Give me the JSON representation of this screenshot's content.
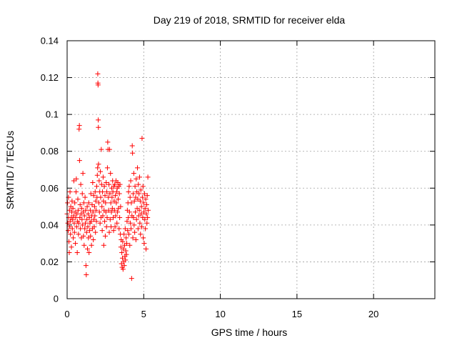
{
  "chart_data": {
    "type": "scatter",
    "title": "Day 219 of 2018, SRMTID for receiver elda",
    "xlabel": "GPS time / hours",
    "ylabel": "SRMTID / TECUs",
    "xlim": [
      0,
      24
    ],
    "ylim": [
      0,
      0.14
    ],
    "xticks": [
      0,
      5,
      10,
      15,
      20
    ],
    "xtick_labels": [
      "0",
      "5",
      "10",
      "15",
      "20"
    ],
    "yticks": [
      0,
      0.02,
      0.04,
      0.06,
      0.08,
      0.1,
      0.12,
      0.14
    ],
    "ytick_labels": [
      "0",
      "0.02",
      "0.04",
      "0.06",
      "0.08",
      "0.1",
      "0.12",
      "0.14"
    ],
    "grid": true,
    "marker": "+",
    "series": [
      {
        "name": "elda",
        "color": "#ff0000",
        "points": [
          [
            0.0,
            0.046
          ],
          [
            0.03,
            0.052
          ],
          [
            0.05,
            0.041
          ],
          [
            0.07,
            0.037
          ],
          [
            0.09,
            0.055
          ],
          [
            0.1,
            0.044
          ],
          [
            0.12,
            0.031
          ],
          [
            0.14,
            0.025
          ],
          [
            0.15,
            0.048
          ],
          [
            0.17,
            0.039
          ],
          [
            0.19,
            0.058
          ],
          [
            0.2,
            0.042
          ],
          [
            0.22,
            0.035
          ],
          [
            0.24,
            0.05
          ],
          [
            0.26,
            0.044
          ],
          [
            0.28,
            0.028
          ],
          [
            0.3,
            0.047
          ],
          [
            0.32,
            0.053
          ],
          [
            0.34,
            0.038
          ],
          [
            0.36,
            0.043
          ],
          [
            0.38,
            0.049
          ],
          [
            0.4,
            0.033
          ],
          [
            0.42,
            0.045
          ],
          [
            0.44,
            0.064
          ],
          [
            0.46,
            0.041
          ],
          [
            0.48,
            0.036
          ],
          [
            0.5,
            0.052
          ],
          [
            0.52,
            0.047
          ],
          [
            0.54,
            0.03
          ],
          [
            0.56,
            0.044
          ],
          [
            0.58,
            0.058
          ],
          [
            0.6,
            0.065
          ],
          [
            0.62,
            0.039
          ],
          [
            0.64,
            0.046
          ],
          [
            0.66,
            0.025
          ],
          [
            0.68,
            0.042
          ],
          [
            0.7,
            0.054
          ],
          [
            0.72,
            0.048
          ],
          [
            0.74,
            0.035
          ],
          [
            0.76,
            0.041
          ],
          [
            0.78,
            0.092
          ],
          [
            0.8,
            0.094
          ],
          [
            0.81,
            0.075
          ],
          [
            0.83,
            0.044
          ],
          [
            0.85,
            0.051
          ],
          [
            0.87,
            0.038
          ],
          [
            0.89,
            0.062
          ],
          [
            0.91,
            0.046
          ],
          [
            0.93,
            0.033
          ],
          [
            0.95,
            0.049
          ],
          [
            0.97,
            0.043
          ],
          [
            0.99,
            0.057
          ],
          [
            1.01,
            0.04
          ],
          [
            1.03,
            0.068
          ],
          [
            1.05,
            0.047
          ],
          [
            1.07,
            0.034
          ],
          [
            1.09,
            0.052
          ],
          [
            1.11,
            0.029
          ],
          [
            1.13,
            0.045
          ],
          [
            1.15,
            0.038
          ],
          [
            1.17,
            0.055
          ],
          [
            1.19,
            0.041
          ],
          [
            1.21,
            0.048
          ],
          [
            1.23,
            0.018
          ],
          [
            1.25,
            0.013
          ],
          [
            1.27,
            0.036
          ],
          [
            1.29,
            0.043
          ],
          [
            1.31,
            0.05
          ],
          [
            1.33,
            0.027
          ],
          [
            1.35,
            0.039
          ],
          [
            1.37,
            0.046
          ],
          [
            1.39,
            0.033
          ],
          [
            1.41,
            0.052
          ],
          [
            1.43,
            0.025
          ],
          [
            1.45,
            0.044
          ],
          [
            1.47,
            0.037
          ],
          [
            1.49,
            0.041
          ],
          [
            1.51,
            0.048
          ],
          [
            1.53,
            0.034
          ],
          [
            1.55,
            0.057
          ],
          [
            1.57,
            0.042
          ],
          [
            1.59,
            0.029
          ],
          [
            1.61,
            0.045
          ],
          [
            1.63,
            0.051
          ],
          [
            1.65,
            0.038
          ],
          [
            1.67,
            0.063
          ],
          [
            1.69,
            0.047
          ],
          [
            1.71,
            0.032
          ],
          [
            1.73,
            0.056
          ],
          [
            1.75,
            0.043
          ],
          [
            1.77,
            0.039
          ],
          [
            1.79,
            0.05
          ],
          [
            1.81,
            0.045
          ],
          [
            1.83,
            0.058
          ],
          [
            1.85,
            0.036
          ],
          [
            1.87,
            0.053
          ],
          [
            1.89,
            0.048
          ],
          [
            1.91,
            0.042
          ],
          [
            1.93,
            0.061
          ],
          [
            1.95,
            0.055
          ],
          [
            1.97,
            0.067
          ],
          [
            1.99,
            0.071
          ],
          [
            2.0,
            0.122
          ],
          [
            2.01,
            0.117
          ],
          [
            2.02,
            0.116
          ],
          [
            2.03,
            0.097
          ],
          [
            2.04,
            0.093
          ],
          [
            2.05,
            0.073
          ],
          [
            2.07,
            0.052
          ],
          [
            2.09,
            0.064
          ],
          [
            2.11,
            0.047
          ],
          [
            2.13,
            0.058
          ],
          [
            2.15,
            0.041
          ],
          [
            2.17,
            0.069
          ],
          [
            2.19,
            0.055
          ],
          [
            2.21,
            0.044
          ],
          [
            2.23,
            0.081
          ],
          [
            2.25,
            0.062
          ],
          [
            2.27,
            0.05
          ],
          [
            2.29,
            0.037
          ],
          [
            2.31,
            0.058
          ],
          [
            2.33,
            0.045
          ],
          [
            2.35,
            0.066
          ],
          [
            2.37,
            0.053
          ],
          [
            2.39,
            0.029
          ],
          [
            2.41,
            0.048
          ],
          [
            2.43,
            0.061
          ],
          [
            2.45,
            0.042
          ],
          [
            2.47,
            0.056
          ],
          [
            2.49,
            0.034
          ],
          [
            2.51,
            0.052
          ],
          [
            2.53,
            0.047
          ],
          [
            2.55,
            0.063
          ],
          [
            2.57,
            0.039
          ],
          [
            2.59,
            0.058
          ],
          [
            2.61,
            0.044
          ],
          [
            2.63,
            0.071
          ],
          [
            2.65,
            0.085
          ],
          [
            2.67,
            0.081
          ],
          [
            2.69,
            0.055
          ],
          [
            2.71,
            0.048
          ],
          [
            2.73,
            0.062
          ],
          [
            2.75,
            0.036
          ],
          [
            2.77,
            0.081
          ],
          [
            2.79,
            0.057
          ],
          [
            2.81,
            0.043
          ],
          [
            2.83,
            0.068
          ],
          [
            2.85,
            0.052
          ],
          [
            2.87,
            0.039
          ],
          [
            2.89,
            0.047
          ],
          [
            2.91,
            0.06
          ],
          [
            2.93,
            0.055
          ],
          [
            2.95,
            0.049
          ],
          [
            2.97,
            0.064
          ],
          [
            2.99,
            0.058
          ],
          [
            3.01,
            0.044
          ],
          [
            3.03,
            0.037
          ],
          [
            3.05,
            0.061
          ],
          [
            3.07,
            0.053
          ],
          [
            3.09,
            0.048
          ],
          [
            3.11,
            0.062
          ],
          [
            3.13,
            0.039
          ],
          [
            3.15,
            0.056
          ],
          [
            3.17,
            0.045
          ],
          [
            3.19,
            0.064
          ],
          [
            3.21,
            0.052
          ],
          [
            3.23,
            0.058
          ],
          [
            3.25,
            0.041
          ],
          [
            3.27,
            0.06
          ],
          [
            3.29,
            0.047
          ],
          [
            3.31,
            0.063
          ],
          [
            3.33,
            0.054
          ],
          [
            3.35,
            0.049
          ],
          [
            3.37,
            0.061
          ],
          [
            3.39,
            0.038
          ],
          [
            3.41,
            0.057
          ],
          [
            3.43,
            0.044
          ],
          [
            3.45,
            0.062
          ],
          [
            3.47,
            0.035
          ],
          [
            3.49,
            0.05
          ],
          [
            3.51,
            0.028
          ],
          [
            3.53,
            0.032
          ],
          [
            3.55,
            0.019
          ],
          [
            3.57,
            0.025
          ],
          [
            3.59,
            0.017
          ],
          [
            3.61,
            0.022
          ],
          [
            3.63,
            0.031
          ],
          [
            3.65,
            0.016
          ],
          [
            3.67,
            0.027
          ],
          [
            3.69,
            0.02
          ],
          [
            3.71,
            0.035
          ],
          [
            3.73,
            0.018
          ],
          [
            3.75,
            0.029
          ],
          [
            3.77,
            0.023
          ],
          [
            3.79,
            0.038
          ],
          [
            3.81,
            0.021
          ],
          [
            3.83,
            0.026
          ],
          [
            3.85,
            0.033
          ],
          [
            3.87,
            0.024
          ],
          [
            3.89,
            0.03
          ],
          [
            3.91,
            0.042
          ],
          [
            3.93,
            0.048
          ],
          [
            3.95,
            0.037
          ],
          [
            3.97,
            0.052
          ],
          [
            3.99,
            0.044
          ],
          [
            4.01,
            0.058
          ],
          [
            4.03,
            0.035
          ],
          [
            4.05,
            0.061
          ],
          [
            4.07,
            0.047
          ],
          [
            4.09,
            0.029
          ],
          [
            4.11,
            0.055
          ],
          [
            4.13,
            0.041
          ],
          [
            4.15,
            0.064
          ],
          [
            4.17,
            0.038
          ],
          [
            4.19,
            0.052
          ],
          [
            4.21,
            0.011
          ],
          [
            4.23,
            0.045
          ],
          [
            4.25,
            0.083
          ],
          [
            4.27,
            0.079
          ],
          [
            4.29,
            0.033
          ],
          [
            4.31,
            0.057
          ],
          [
            4.33,
            0.044
          ],
          [
            4.35,
            0.068
          ],
          [
            4.37,
            0.04
          ],
          [
            4.39,
            0.053
          ],
          [
            4.41,
            0.036
          ],
          [
            4.43,
            0.061
          ],
          [
            4.45,
            0.047
          ],
          [
            4.47,
            0.055
          ],
          [
            4.49,
            0.032
          ],
          [
            4.51,
            0.065
          ],
          [
            4.53,
            0.043
          ],
          [
            4.55,
            0.058
          ],
          [
            4.57,
            0.049
          ],
          [
            4.59,
            0.071
          ],
          [
            4.61,
            0.054
          ],
          [
            4.63,
            0.038
          ],
          [
            4.65,
            0.062
          ],
          [
            4.67,
            0.045
          ],
          [
            4.69,
            0.057
          ],
          [
            4.71,
            0.048
          ],
          [
            4.73,
            0.066
          ],
          [
            4.75,
            0.041
          ],
          [
            4.77,
            0.053
          ],
          [
            4.79,
            0.035
          ],
          [
            4.81,
            0.059
          ],
          [
            4.83,
            0.046
          ],
          [
            4.85,
            0.05
          ],
          [
            4.87,
            0.039
          ],
          [
            4.89,
            0.087
          ],
          [
            4.91,
            0.055
          ],
          [
            4.93,
            0.044
          ],
          [
            4.95,
            0.061
          ],
          [
            4.97,
            0.033
          ],
          [
            4.99,
            0.052
          ],
          [
            5.01,
            0.047
          ],
          [
            5.03,
            0.03
          ],
          [
            5.05,
            0.057
          ],
          [
            5.07,
            0.043
          ],
          [
            5.09,
            0.049
          ],
          [
            5.11,
            0.038
          ],
          [
            5.13,
            0.054
          ],
          [
            5.15,
            0.027
          ],
          [
            5.17,
            0.046
          ],
          [
            5.19,
            0.051
          ],
          [
            5.21,
            0.041
          ],
          [
            5.23,
            0.056
          ],
          [
            5.25,
            0.044
          ],
          [
            5.27,
            0.066
          ],
          [
            5.29,
            0.048
          ]
        ]
      }
    ]
  }
}
